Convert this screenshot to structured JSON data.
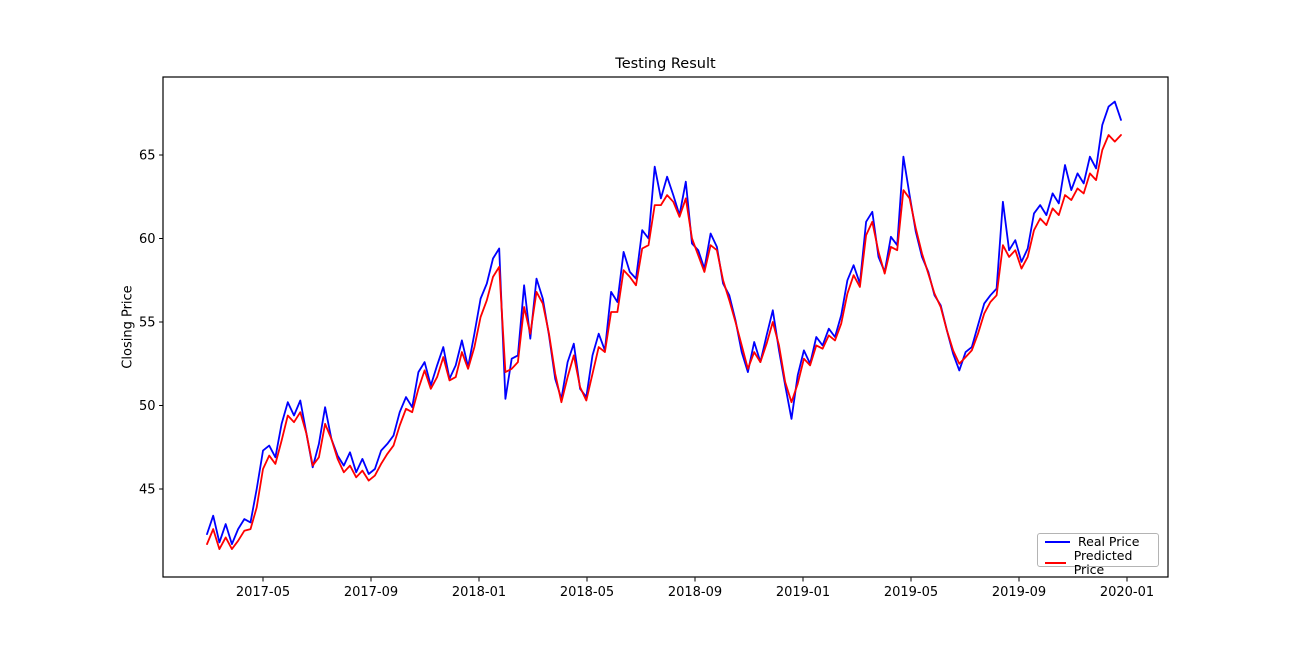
{
  "chart": {
    "title": "Testing Result",
    "ylabel": "Closing Price",
    "legend": [
      {
        "label": "Real Price",
        "color": "#0000ff"
      },
      {
        "label": "Predicted Price",
        "color": "#ff0000"
      }
    ]
  },
  "chart_data": {
    "type": "line",
    "title": "Testing Result",
    "xlabel": "",
    "ylabel": "Closing Price",
    "x_tick_labels": [
      "2017-05",
      "2017-09",
      "2018-01",
      "2018-05",
      "2018-09",
      "2019-01",
      "2019-05",
      "2019-09",
      "2020-01"
    ],
    "y_ticks": [
      45,
      50,
      55,
      60,
      65
    ],
    "ylim": [
      39.7,
      69.7
    ],
    "x_range_dates": [
      "2017-03",
      "2019-12"
    ],
    "sampling_interval": "weekly",
    "points_per_series": 148,
    "grid": false,
    "legend_position": "lower right",
    "series": [
      {
        "name": "Real Price",
        "color": "#0000ff",
        "values": [
          42.3,
          43.4,
          41.8,
          42.9,
          41.7,
          42.6,
          43.2,
          43.0,
          45.0,
          47.3,
          47.6,
          46.9,
          48.9,
          50.2,
          49.4,
          50.3,
          48.3,
          46.3,
          47.7,
          49.9,
          48.0,
          47.0,
          46.4,
          47.2,
          46.0,
          46.8,
          45.9,
          46.2,
          47.3,
          47.7,
          48.2,
          49.6,
          50.5,
          49.9,
          52.0,
          52.6,
          51.2,
          52.4,
          53.5,
          51.6,
          52.4,
          53.9,
          52.3,
          54.3,
          56.4,
          57.3,
          58.8,
          59.4,
          50.4,
          52.8,
          53.0,
          57.2,
          54.0,
          57.6,
          56.4,
          54.2,
          51.6,
          50.4,
          52.6,
          53.7,
          51.0,
          50.5,
          53.0,
          54.3,
          53.3,
          56.8,
          56.2,
          59.2,
          58.0,
          57.6,
          60.5,
          60.0,
          64.3,
          62.4,
          63.7,
          62.6,
          61.4,
          63.4,
          59.7,
          59.3,
          58.2,
          60.3,
          59.5,
          57.3,
          56.6,
          55.1,
          53.2,
          52.0,
          53.8,
          52.6,
          54.2,
          55.7,
          53.3,
          51.2,
          49.2,
          51.8,
          53.3,
          52.5,
          54.1,
          53.6,
          54.6,
          54.1,
          55.4,
          57.5,
          58.4,
          57.3,
          61.0,
          61.6,
          58.9,
          58.0,
          60.1,
          59.6,
          64.9,
          62.6,
          60.4,
          58.9,
          58.0,
          56.6,
          56.0,
          54.5,
          53.1,
          52.1,
          53.2,
          53.5,
          54.8,
          56.1,
          56.6,
          57.0,
          62.2,
          59.3,
          59.9,
          58.6,
          59.4,
          61.5,
          62.0,
          61.4,
          62.7,
          62.1,
          64.4,
          62.9,
          63.9,
          63.3,
          64.9,
          64.2,
          66.8,
          67.9,
          68.2,
          67.1
        ]
      },
      {
        "name": "Predicted Price",
        "color": "#ff0000",
        "values": [
          41.7,
          42.6,
          41.4,
          42.1,
          41.4,
          41.9,
          42.5,
          42.6,
          43.9,
          46.2,
          47.0,
          46.5,
          47.9,
          49.4,
          49.0,
          49.6,
          48.3,
          46.4,
          46.9,
          48.9,
          48.0,
          46.8,
          46.0,
          46.4,
          45.7,
          46.1,
          45.5,
          45.8,
          46.5,
          47.1,
          47.6,
          48.8,
          49.8,
          49.6,
          51.0,
          52.1,
          51.0,
          51.7,
          52.9,
          51.5,
          51.7,
          53.2,
          52.2,
          53.5,
          55.3,
          56.3,
          57.7,
          58.3,
          52.0,
          52.2,
          52.6,
          55.9,
          54.3,
          56.8,
          56.1,
          54.3,
          51.9,
          50.2,
          51.7,
          53.0,
          51.1,
          50.3,
          51.9,
          53.5,
          53.2,
          55.6,
          55.6,
          58.1,
          57.7,
          57.2,
          59.4,
          59.6,
          62.0,
          62.0,
          62.6,
          62.2,
          61.3,
          62.4,
          60.0,
          59.0,
          58.0,
          59.6,
          59.3,
          57.5,
          56.3,
          55.0,
          53.6,
          52.2,
          53.2,
          52.6,
          53.7,
          55.0,
          53.6,
          51.4,
          50.2,
          51.3,
          52.8,
          52.4,
          53.6,
          53.4,
          54.2,
          53.9,
          54.9,
          56.7,
          57.8,
          57.1,
          60.2,
          61.0,
          59.2,
          57.9,
          59.5,
          59.3,
          62.9,
          62.4,
          60.6,
          59.1,
          57.9,
          56.7,
          55.9,
          54.5,
          53.3,
          52.5,
          52.9,
          53.3,
          54.3,
          55.5,
          56.2,
          56.6,
          59.6,
          58.9,
          59.3,
          58.2,
          58.9,
          60.5,
          61.2,
          60.8,
          61.8,
          61.4,
          62.6,
          62.3,
          63.0,
          62.7,
          63.9,
          63.5,
          65.3,
          66.2,
          65.8,
          66.2
        ]
      }
    ]
  }
}
